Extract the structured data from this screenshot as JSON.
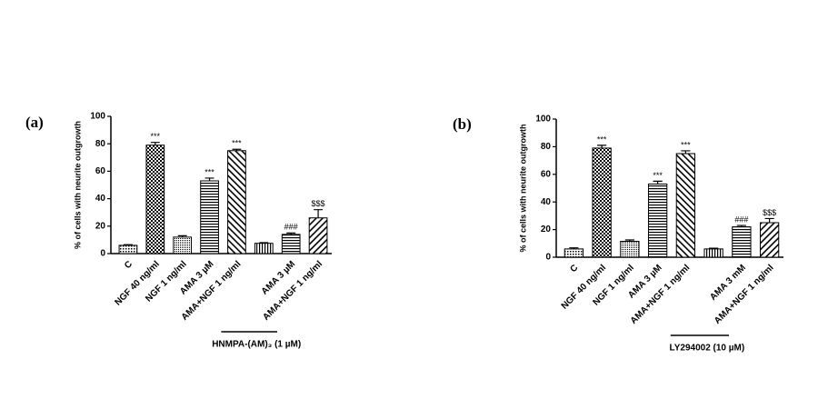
{
  "chart_data": [
    {
      "type": "bar",
      "panel": "(a)",
      "ylabel": "% of cells with neurite outgrowth",
      "categories": [
        "C",
        "NGF 40 ng/ml",
        "NGF 1 ng/ml",
        "AMA 3 µM",
        "AMA+NGF 1 ng/ml",
        null,
        "AMA 3 µM",
        "AMA+NGF 1 ng/ml"
      ],
      "values": [
        6,
        79,
        12,
        53,
        75,
        7.5,
        14,
        26
      ],
      "errors": [
        0.5,
        2,
        1,
        2,
        1,
        0.5,
        1,
        6
      ],
      "annotations": [
        null,
        "***",
        null,
        "***",
        "***",
        null,
        "###",
        "$$$"
      ],
      "patterns": [
        "dots",
        "checker",
        "fine",
        "horizontal",
        "diag-back",
        "vertical",
        "horizontal",
        "diag"
      ],
      "group_label": "HNMPA-(AM)₃ (1 µM)",
      "ylim": [
        0,
        100
      ],
      "yticks": [
        0,
        20,
        40,
        60,
        80,
        100
      ],
      "color": "#000000"
    },
    {
      "type": "bar",
      "panel": "(b)",
      "ylabel": "% of cells with neurite outgrowth",
      "categories": [
        "C",
        "NGF 40 ng/ml",
        "NGF 1 ng/ml",
        "AMA 3 µM",
        "AMA+NGF 1 ng/ml",
        null,
        "AMA 3 mM",
        "AMA+NGF 1 ng/ml"
      ],
      "values": [
        6,
        79,
        11.5,
        53,
        75,
        6,
        22,
        25
      ],
      "errors": [
        0.8,
        2,
        1,
        2,
        2,
        0.5,
        1,
        3
      ],
      "annotations": [
        null,
        "***",
        null,
        "***",
        "***",
        null,
        "###",
        "$$$"
      ],
      "patterns": [
        "dots",
        "checker",
        "fine",
        "horizontal",
        "diag-back",
        "vertical",
        "horizontal",
        "diag"
      ],
      "group_label": "LY294002 (10 µM)",
      "ylim": [
        0,
        100
      ],
      "yticks": [
        0,
        20,
        40,
        60,
        80,
        100
      ],
      "color": "#000000"
    }
  ]
}
